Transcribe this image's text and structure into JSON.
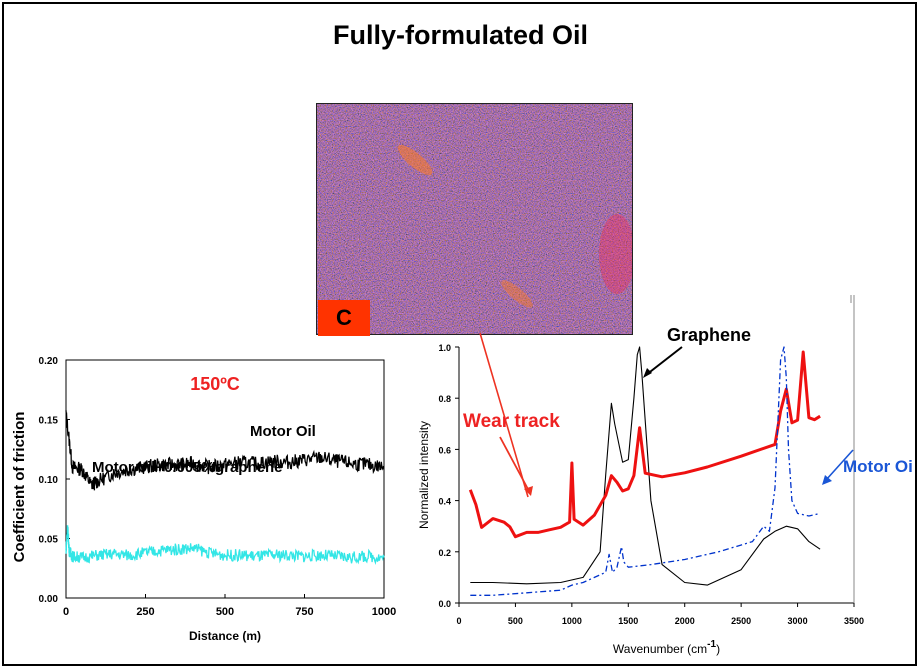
{
  "page": {
    "title": "Fully-formulated Oil"
  },
  "micrograph": {
    "label": "C"
  },
  "chart_data": [
    {
      "type": "line",
      "title": "",
      "annotation": "150ºC",
      "xlabel": "Distance (m)",
      "ylabel": "Coefficient of friction",
      "xlim": [
        0,
        1000
      ],
      "ylim": [
        0,
        0.2
      ],
      "x_ticks": [
        "0",
        "250",
        "500",
        "750",
        "1000"
      ],
      "y_ticks": [
        "0.00",
        "0.05",
        "0.10",
        "0.15",
        "0.20"
      ],
      "grid": false,
      "series": [
        {
          "name": "Motor Oil",
          "color": "#000000",
          "x": [
            0,
            20,
            50,
            80,
            100,
            150,
            200,
            250,
            300,
            350,
            400,
            450,
            500,
            550,
            600,
            650,
            700,
            750,
            800,
            850,
            900,
            950,
            1000
          ],
          "y": [
            0.155,
            0.11,
            0.108,
            0.095,
            0.098,
            0.105,
            0.108,
            0.11,
            0.112,
            0.112,
            0.113,
            0.11,
            0.112,
            0.114,
            0.113,
            0.115,
            0.114,
            0.116,
            0.118,
            0.115,
            0.113,
            0.112,
            0.11
          ]
        },
        {
          "name": "Motor oil+0.005%graphene",
          "color": "#33e6e6",
          "x": [
            0,
            5,
            10,
            20,
            50,
            100,
            150,
            200,
            250,
            300,
            350,
            400,
            450,
            500,
            550,
            600,
            650,
            700,
            750,
            800,
            850,
            900,
            950,
            1000
          ],
          "y": [
            0.04,
            0.06,
            0.04,
            0.035,
            0.034,
            0.036,
            0.037,
            0.036,
            0.038,
            0.04,
            0.041,
            0.042,
            0.038,
            0.036,
            0.036,
            0.035,
            0.036,
            0.036,
            0.035,
            0.036,
            0.035,
            0.034,
            0.035,
            0.034
          ]
        }
      ]
    },
    {
      "type": "line",
      "title": "",
      "xlabel": "Wavenumber (cm",
      "xlabel_sup": "-1",
      "xlabel_end": ")",
      "ylabel": "Normalized intensity",
      "xlim": [
        0,
        3500
      ],
      "ylim": [
        0,
        1.0
      ],
      "x_ticks": [
        "0",
        "500",
        "1000",
        "1500",
        "2000",
        "2500",
        "3000",
        "3500"
      ],
      "y_ticks": [
        "0.0",
        "0.2",
        "0.4",
        "0.6",
        "0.8",
        "1.0"
      ],
      "grid": false,
      "series": [
        {
          "name": "Graphene",
          "color": "#000000",
          "x": [
            100,
            300,
            600,
            900,
            1100,
            1250,
            1300,
            1350,
            1380,
            1450,
            1500,
            1550,
            1580,
            1600,
            1620,
            1700,
            1800,
            2000,
            2200,
            2500,
            2700,
            2800,
            2900,
            3000,
            3100,
            3200
          ],
          "y": [
            0.08,
            0.08,
            0.075,
            0.08,
            0.1,
            0.2,
            0.5,
            0.78,
            0.7,
            0.55,
            0.56,
            0.8,
            0.97,
            1.0,
            0.9,
            0.4,
            0.15,
            0.08,
            0.07,
            0.13,
            0.25,
            0.28,
            0.3,
            0.29,
            0.24,
            0.21
          ]
        },
        {
          "name": "Wear track",
          "color": "#ee1111",
          "x": [
            100,
            150,
            200,
            300,
            400,
            450,
            500,
            600,
            700,
            800,
            900,
            980,
            1000,
            1020,
            1100,
            1200,
            1300,
            1350,
            1400,
            1450,
            1500,
            1550,
            1600,
            1650,
            1800,
            2000,
            2200,
            2500,
            2800,
            2850,
            2900,
            2950,
            3000,
            3050,
            3100,
            3150,
            3200
          ],
          "y": [
            0.44,
            0.38,
            0.3,
            0.33,
            0.31,
            0.3,
            0.26,
            0.27,
            0.27,
            0.28,
            0.3,
            0.32,
            0.55,
            0.33,
            0.3,
            0.35,
            0.42,
            0.49,
            0.47,
            0.44,
            0.45,
            0.5,
            0.69,
            0.5,
            0.49,
            0.51,
            0.53,
            0.58,
            0.62,
            0.75,
            0.83,
            0.7,
            0.72,
            0.98,
            0.72,
            0.71,
            0.73
          ]
        },
        {
          "name": "Motor Oi",
          "color": "#0033cc",
          "x": [
            100,
            300,
            600,
            900,
            1000,
            1100,
            1200,
            1300,
            1330,
            1360,
            1400,
            1440,
            1460,
            1500,
            1700,
            2000,
            2300,
            2600,
            2700,
            2750,
            2800,
            2850,
            2880,
            2900,
            2920,
            2950,
            3000,
            3100,
            3200
          ],
          "y": [
            0.03,
            0.03,
            0.04,
            0.05,
            0.07,
            0.08,
            0.1,
            0.12,
            0.19,
            0.12,
            0.14,
            0.22,
            0.16,
            0.14,
            0.15,
            0.17,
            0.2,
            0.24,
            0.3,
            0.28,
            0.45,
            0.95,
            1.0,
            0.88,
            0.6,
            0.4,
            0.35,
            0.34,
            0.35
          ]
        }
      ]
    }
  ]
}
